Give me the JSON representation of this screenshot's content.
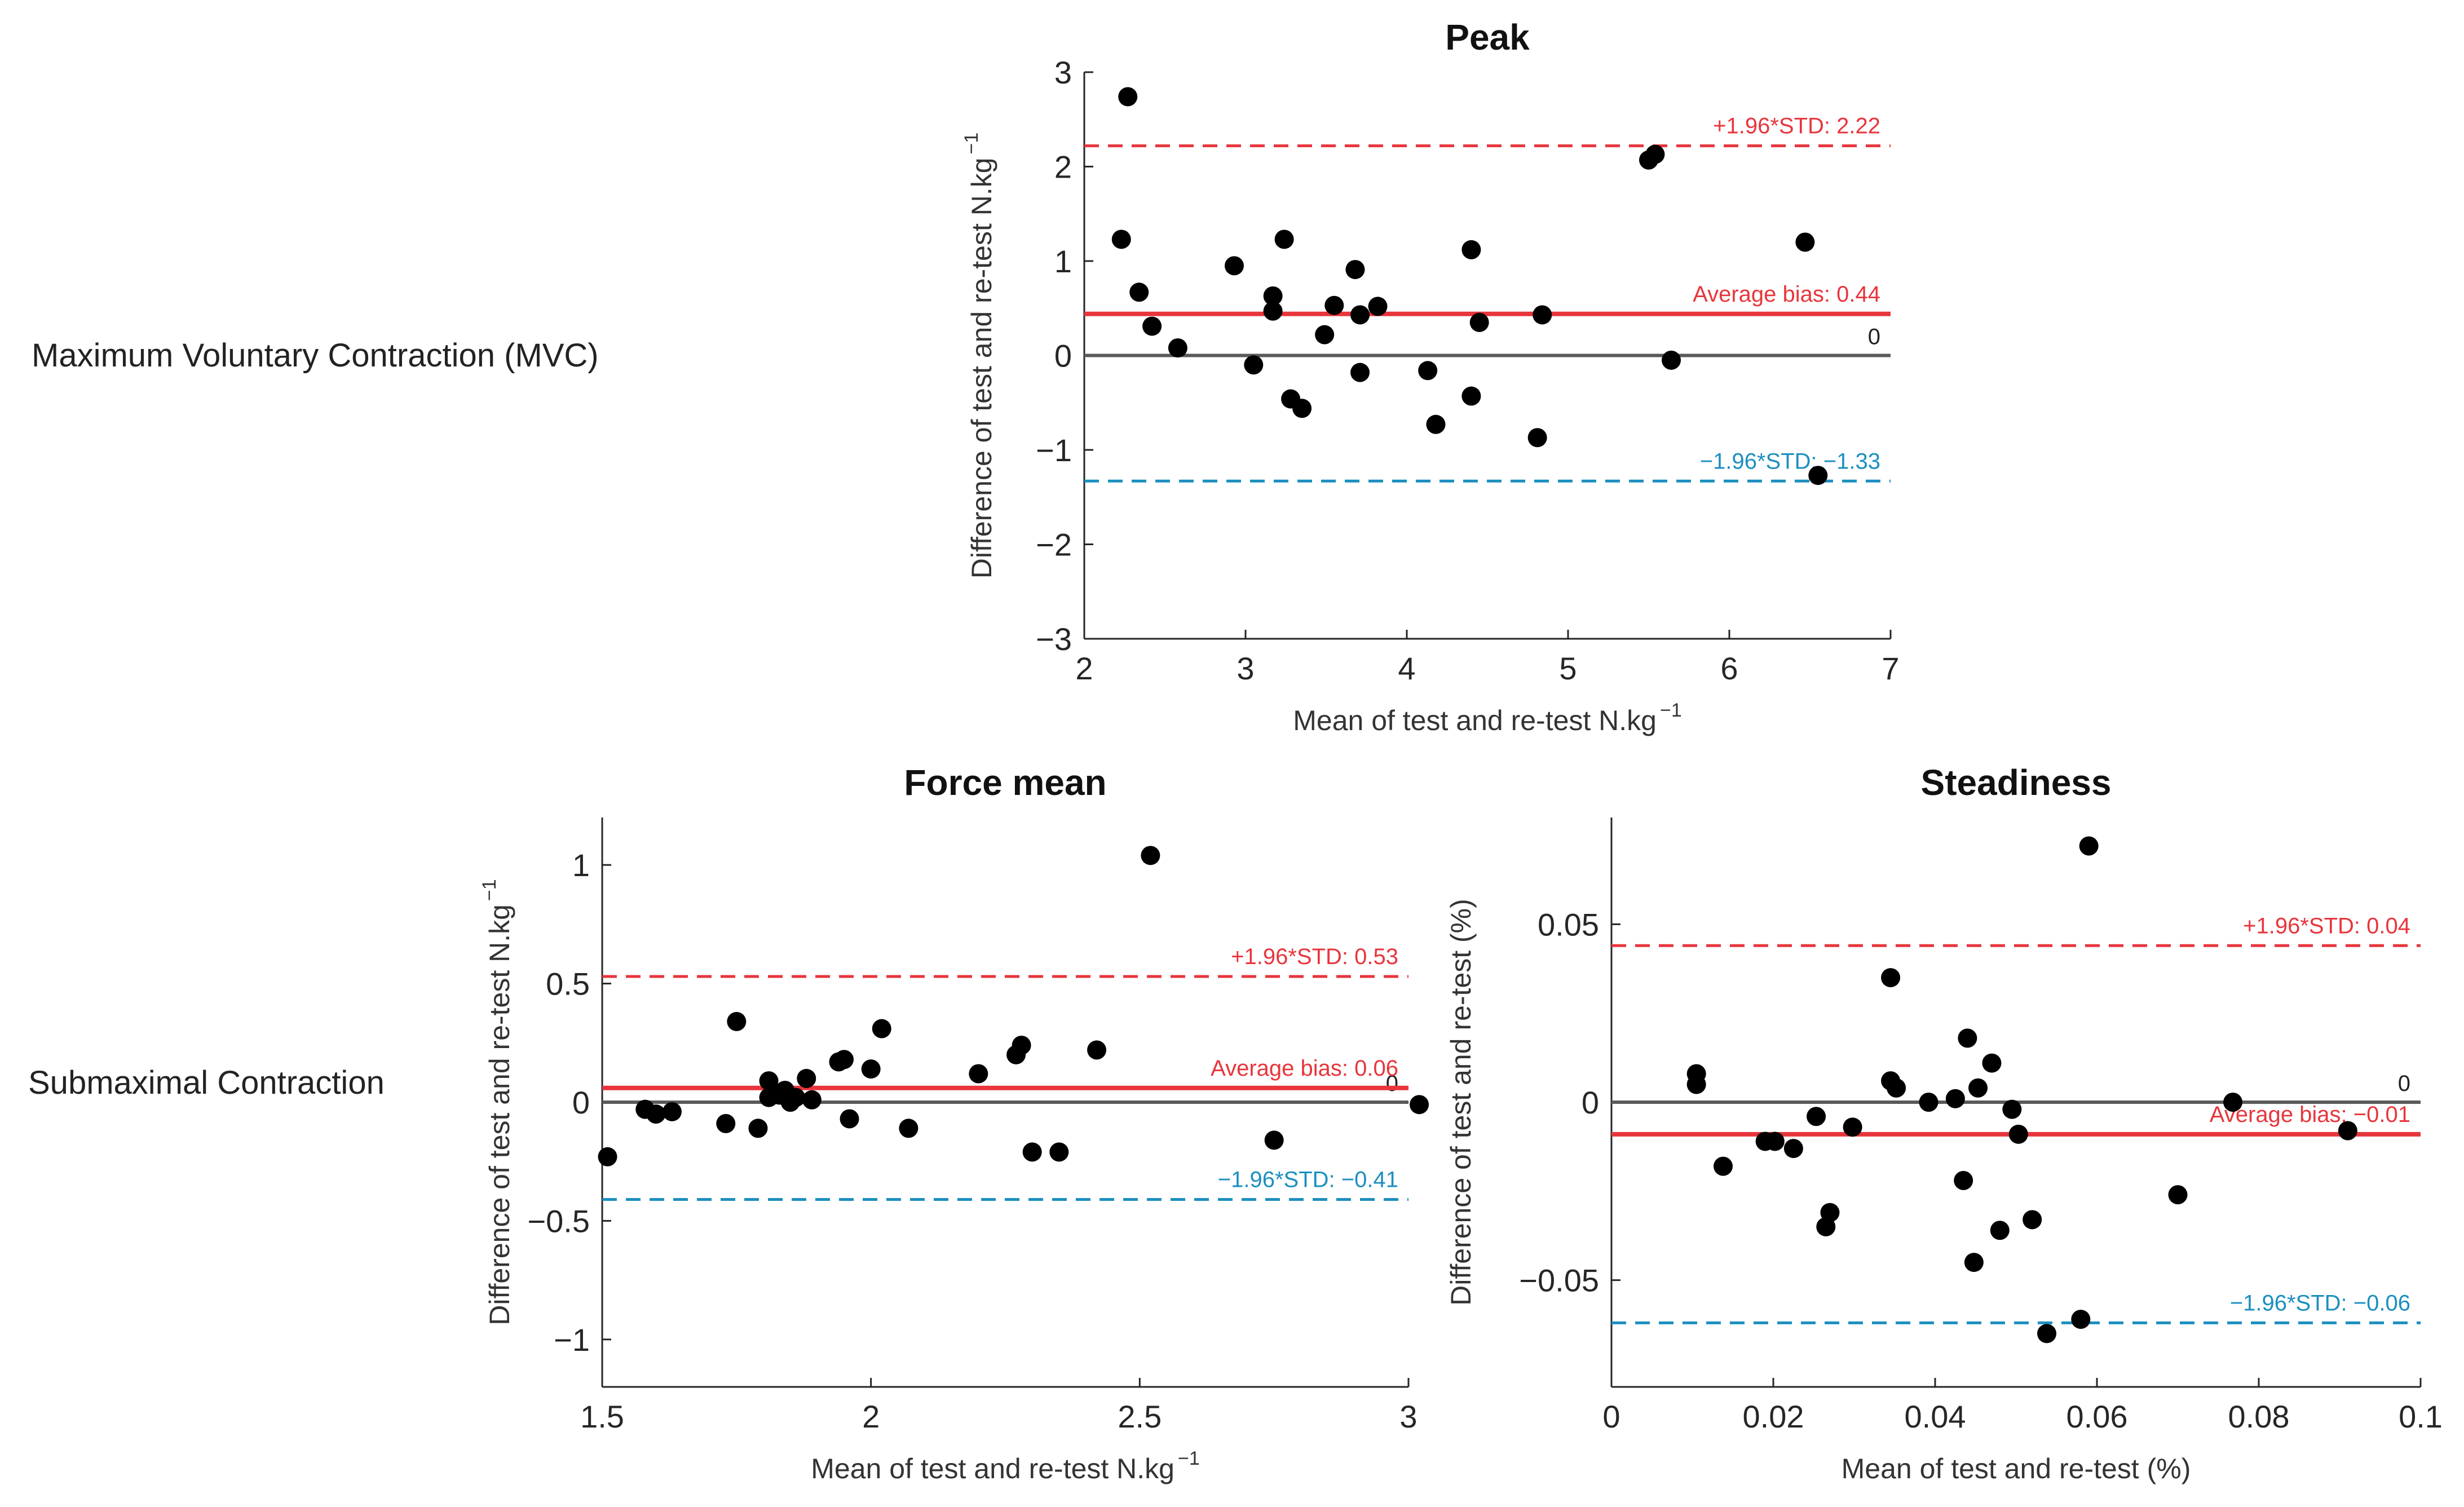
{
  "row_labels": {
    "mvc": "Maximum Voluntary Contraction (MVC)",
    "sub": "Submaximal Contraction"
  },
  "colors": {
    "upper": "#e8353c",
    "bias": "#e8353c",
    "lower": "#1b8fbf",
    "zero": "#5a5a5a",
    "point": "#000000",
    "axis": "#262626"
  },
  "chart_data": [
    {
      "id": "peak",
      "type": "scatter",
      "title": "Peak",
      "xlabel": "Mean of test and re-test N.kg",
      "xlabel_sup": "−1",
      "ylabel": "Difference of test and re-test N.kg",
      "ylabel_sup": "−1",
      "xlim": [
        2,
        7
      ],
      "ylim": [
        -3,
        3
      ],
      "xticks": [
        2,
        3,
        4,
        5,
        6,
        7
      ],
      "xtick_labels": [
        "2",
        "3",
        "4",
        "5",
        "6",
        "7"
      ],
      "yticks": [
        -3,
        -2,
        -1,
        0,
        1,
        2,
        3
      ],
      "ytick_labels": [
        "−3",
        "−2",
        "−1",
        "0",
        "1",
        "2",
        "3"
      ],
      "zero_label": "0",
      "upper_loa": {
        "value": 2.22,
        "label": "+1.96*STD: 2.22"
      },
      "bias": {
        "value": 0.44,
        "label": "Average bias: 0.44"
      },
      "lower_loa": {
        "value": -1.33,
        "label": "−1.96*STD: −1.33"
      },
      "points": [
        [
          2.27,
          2.74
        ],
        [
          2.23,
          1.23
        ],
        [
          2.34,
          0.67
        ],
        [
          2.42,
          0.31
        ],
        [
          2.58,
          0.08
        ],
        [
          2.93,
          0.95
        ],
        [
          3.05,
          -0.1
        ],
        [
          3.17,
          0.63
        ],
        [
          3.17,
          0.47
        ],
        [
          3.24,
          1.23
        ],
        [
          3.28,
          -0.46
        ],
        [
          3.35,
          -0.56
        ],
        [
          3.49,
          0.22
        ],
        [
          3.55,
          0.53
        ],
        [
          3.68,
          0.91
        ],
        [
          3.71,
          0.43
        ],
        [
          3.71,
          -0.18
        ],
        [
          3.82,
          0.52
        ],
        [
          4.13,
          -0.16
        ],
        [
          4.18,
          -0.73
        ],
        [
          4.4,
          1.12
        ],
        [
          4.4,
          -0.43
        ],
        [
          4.45,
          0.35
        ],
        [
          4.81,
          -0.87
        ],
        [
          4.84,
          0.43
        ],
        [
          5.5,
          2.07
        ],
        [
          5.54,
          2.13
        ],
        [
          5.64,
          -0.05
        ],
        [
          6.47,
          1.2
        ],
        [
          6.55,
          -1.27
        ]
      ]
    },
    {
      "id": "force_mean",
      "type": "scatter",
      "title": "Force mean",
      "xlabel": "Mean of test and re-test N.kg",
      "xlabel_sup": "−1",
      "ylabel": "Difference of test and re-test N.kg",
      "ylabel_sup": "−1",
      "xlim": [
        1.5,
        3
      ],
      "ylim": [
        -1.2,
        1.2
      ],
      "xticks": [
        1.5,
        2,
        2.5,
        3
      ],
      "xtick_labels": [
        "1.5",
        "2",
        "2.5",
        "3"
      ],
      "yticks": [
        -1,
        -0.5,
        0,
        0.5,
        1
      ],
      "ytick_labels": [
        "−1",
        "−0.5",
        "0",
        "0.5",
        "1"
      ],
      "zero_label": "0",
      "upper_loa": {
        "value": 0.53,
        "label": "+1.96*STD: 0.53"
      },
      "bias": {
        "value": 0.06,
        "label": "Average bias: 0.06"
      },
      "lower_loa": {
        "value": -0.41,
        "label": "−1.96*STD: −0.41"
      },
      "points": [
        [
          1.51,
          -0.23
        ],
        [
          1.58,
          -0.03
        ],
        [
          1.6,
          -0.05
        ],
        [
          1.63,
          -0.04
        ],
        [
          1.73,
          -0.09
        ],
        [
          1.75,
          0.34
        ],
        [
          1.79,
          -0.11
        ],
        [
          1.81,
          0.09
        ],
        [
          1.81,
          0.02
        ],
        [
          1.83,
          0.03
        ],
        [
          1.84,
          0.05
        ],
        [
          1.85,
          0.0
        ],
        [
          1.86,
          0.02
        ],
        [
          1.88,
          0.1
        ],
        [
          1.89,
          0.01
        ],
        [
          1.94,
          0.17
        ],
        [
          1.95,
          0.18
        ],
        [
          1.96,
          -0.07
        ],
        [
          2.0,
          0.14
        ],
        [
          2.02,
          0.31
        ],
        [
          2.07,
          -0.11
        ],
        [
          2.2,
          0.12
        ],
        [
          2.27,
          0.2
        ],
        [
          2.28,
          0.24
        ],
        [
          2.3,
          -0.21
        ],
        [
          2.35,
          -0.21
        ],
        [
          2.42,
          0.22
        ],
        [
          2.52,
          1.04
        ],
        [
          2.75,
          -0.16
        ],
        [
          3.02,
          -0.01
        ]
      ]
    },
    {
      "id": "steadiness",
      "type": "scatter",
      "title": "Steadiness",
      "xlabel": "Mean of test and re-test (%)",
      "xlabel_sup": "",
      "ylabel": "Difference of test and re-test (%)",
      "ylabel_sup": "",
      "xlim": [
        0,
        0.1
      ],
      "ylim": [
        -0.08,
        0.08
      ],
      "xticks": [
        0,
        0.02,
        0.04,
        0.06,
        0.08,
        0.1
      ],
      "xtick_labels": [
        "0",
        "0.02",
        "0.04",
        "0.06",
        "0.08",
        "0.1"
      ],
      "yticks": [
        -0.05,
        0,
        0.05
      ],
      "ytick_labels": [
        "−0.05",
        "0",
        "0.05"
      ],
      "zero_label": "0",
      "upper_loa": {
        "value": 0.044,
        "label": "+1.96*STD: 0.04"
      },
      "bias": {
        "value": -0.009,
        "label": "Average bias: −0.01"
      },
      "lower_loa": {
        "value": -0.062,
        "label": "−1.96*STD: −0.06"
      },
      "points": [
        [
          0.0105,
          0.008
        ],
        [
          0.0105,
          0.005
        ],
        [
          0.0138,
          -0.018
        ],
        [
          0.019,
          -0.011
        ],
        [
          0.0202,
          -0.011
        ],
        [
          0.0225,
          -0.013
        ],
        [
          0.0253,
          -0.004
        ],
        [
          0.0265,
          -0.035
        ],
        [
          0.027,
          -0.031
        ],
        [
          0.0298,
          -0.007
        ],
        [
          0.0345,
          0.035
        ],
        [
          0.0345,
          0.006
        ],
        [
          0.0352,
          0.004
        ],
        [
          0.0392,
          0.0
        ],
        [
          0.0425,
          0.001
        ],
        [
          0.0435,
          -0.022
        ],
        [
          0.044,
          0.018
        ],
        [
          0.0448,
          -0.045
        ],
        [
          0.0453,
          0.004
        ],
        [
          0.047,
          0.011
        ],
        [
          0.048,
          -0.036
        ],
        [
          0.0495,
          -0.002
        ],
        [
          0.0503,
          -0.009
        ],
        [
          0.052,
          -0.033
        ],
        [
          0.0538,
          -0.065
        ],
        [
          0.058,
          -0.061
        ],
        [
          0.059,
          0.072
        ],
        [
          0.07,
          -0.026
        ],
        [
          0.0768,
          0.0
        ],
        [
          0.091,
          -0.008
        ]
      ]
    }
  ]
}
